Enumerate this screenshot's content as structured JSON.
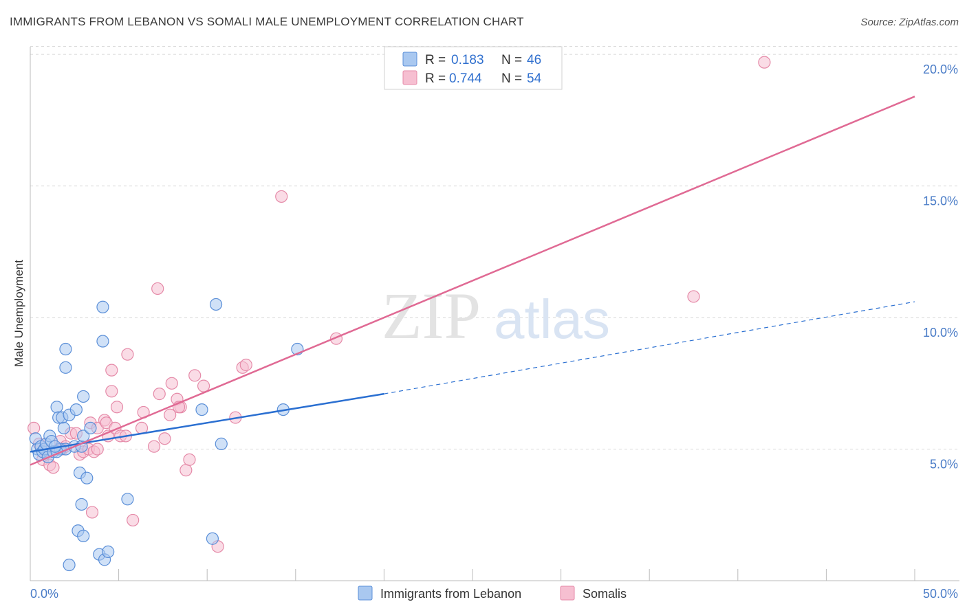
{
  "title": "IMMIGRANTS FROM LEBANON VS SOMALI MALE UNEMPLOYMENT CORRELATION CHART",
  "source": "Source: ZipAtlas.com",
  "watermark": {
    "zip": "ZIP",
    "atlas": "atlas"
  },
  "colors": {
    "blue_fill": "#a9c8f0",
    "blue_stroke": "#5b8fd8",
    "blue_line": "#2a6fd1",
    "pink_fill": "#f6bfd1",
    "pink_stroke": "#e58aa8",
    "pink_line": "#e06a94",
    "tick_text": "#4a7cc7",
    "grid": "#d8d8d8"
  },
  "chart_data": {
    "type": "scatter",
    "title": "IMMIGRANTS FROM LEBANON VS SOMALI MALE UNEMPLOYMENT CORRELATION CHART",
    "xlabel": "",
    "ylabel": "Male Unemployment",
    "xlim": [
      0,
      50
    ],
    "ylim": [
      0,
      20.5
    ],
    "x_tick_labels": [
      "0.0%",
      "50.0%"
    ],
    "y_ticks": [
      5,
      10,
      15,
      20
    ],
    "y_tick_labels": [
      "5.0%",
      "10.0%",
      "15.0%",
      "20.0%"
    ],
    "legend": {
      "r_label": "R =",
      "n_label": "N =",
      "entries": [
        {
          "name": "Immigrants from Lebanon",
          "r": "0.183",
          "n": "46"
        },
        {
          "name": "Somalis",
          "r": "0.744",
          "n": "54"
        }
      ]
    },
    "series": [
      {
        "name": "Immigrants from Lebanon",
        "color": "blue",
        "trend": {
          "x0": 0,
          "y0": 4.9,
          "x1": 20,
          "y1": 7.1,
          "dash_x1": 50,
          "dash_y1": 10.6
        },
        "points": [
          [
            0.3,
            5.4
          ],
          [
            0.4,
            5.0
          ],
          [
            0.5,
            4.8
          ],
          [
            0.6,
            5.1
          ],
          [
            0.7,
            4.9
          ],
          [
            0.8,
            5.0
          ],
          [
            0.9,
            5.2
          ],
          [
            1.0,
            4.7
          ],
          [
            1.1,
            5.5
          ],
          [
            1.2,
            5.3
          ],
          [
            1.3,
            4.9
          ],
          [
            1.5,
            6.6
          ],
          [
            1.6,
            6.2
          ],
          [
            1.7,
            5.0
          ],
          [
            1.8,
            6.2
          ],
          [
            1.9,
            5.8
          ],
          [
            2.0,
            5.0
          ],
          [
            2.2,
            6.3
          ],
          [
            1.5,
            4.9
          ],
          [
            2.5,
            5.1
          ],
          [
            2.6,
            6.5
          ],
          [
            2.9,
            5.1
          ],
          [
            3.0,
            5.5
          ],
          [
            1.4,
            5.1
          ],
          [
            2.0,
            8.8
          ],
          [
            2.0,
            8.1
          ],
          [
            3.0,
            7.0
          ],
          [
            4.1,
            10.4
          ],
          [
            4.1,
            9.1
          ],
          [
            3.4,
            5.8
          ],
          [
            2.8,
            4.1
          ],
          [
            2.9,
            2.9
          ],
          [
            3.2,
            3.9
          ],
          [
            2.7,
            1.9
          ],
          [
            3.0,
            1.7
          ],
          [
            2.2,
            0.6
          ],
          [
            3.9,
            1.0
          ],
          [
            4.2,
            0.8
          ],
          [
            4.4,
            1.1
          ],
          [
            5.5,
            3.1
          ],
          [
            10.3,
            1.6
          ],
          [
            9.7,
            6.5
          ],
          [
            10.5,
            10.5
          ],
          [
            10.8,
            5.2
          ],
          [
            14.3,
            6.5
          ],
          [
            15.1,
            8.8
          ]
        ]
      },
      {
        "name": "Somalis",
        "color": "pink",
        "trend": {
          "x0": 0,
          "y0": 4.4,
          "x1": 50,
          "y1": 18.4
        },
        "points": [
          [
            0.2,
            5.8
          ],
          [
            0.5,
            5.2
          ],
          [
            0.7,
            4.6
          ],
          [
            0.9,
            4.9
          ],
          [
            1.1,
            4.4
          ],
          [
            1.3,
            4.3
          ],
          [
            1.6,
            5.0
          ],
          [
            1.7,
            5.3
          ],
          [
            1.8,
            5.0
          ],
          [
            2.0,
            5.1
          ],
          [
            2.3,
            5.6
          ],
          [
            2.6,
            5.6
          ],
          [
            2.8,
            4.8
          ],
          [
            3.0,
            4.9
          ],
          [
            3.3,
            5.0
          ],
          [
            3.6,
            4.9
          ],
          [
            3.8,
            5.0
          ],
          [
            3.4,
            6.0
          ],
          [
            3.8,
            5.8
          ],
          [
            4.2,
            6.1
          ],
          [
            4.3,
            6.0
          ],
          [
            4.4,
            5.5
          ],
          [
            4.6,
            7.2
          ],
          [
            4.9,
            6.6
          ],
          [
            4.8,
            5.8
          ],
          [
            5.1,
            5.5
          ],
          [
            5.4,
            5.5
          ],
          [
            5.5,
            8.6
          ],
          [
            6.3,
            5.8
          ],
          [
            6.4,
            6.4
          ],
          [
            7.0,
            5.1
          ],
          [
            7.3,
            7.1
          ],
          [
            7.6,
            5.4
          ],
          [
            7.9,
            6.3
          ],
          [
            8.0,
            7.5
          ],
          [
            8.3,
            6.9
          ],
          [
            8.5,
            6.6
          ],
          [
            8.4,
            6.6
          ],
          [
            8.8,
            4.2
          ],
          [
            9.0,
            4.6
          ],
          [
            9.3,
            7.8
          ],
          [
            9.8,
            7.4
          ],
          [
            7.2,
            11.1
          ],
          [
            3.5,
            2.6
          ],
          [
            4.6,
            8.0
          ],
          [
            5.8,
            2.3
          ],
          [
            10.6,
            1.3
          ],
          [
            11.6,
            6.2
          ],
          [
            12.0,
            8.1
          ],
          [
            12.2,
            8.2
          ],
          [
            14.2,
            14.6
          ],
          [
            17.3,
            9.2
          ],
          [
            37.5,
            10.8
          ],
          [
            41.5,
            19.7
          ]
        ]
      }
    ]
  }
}
